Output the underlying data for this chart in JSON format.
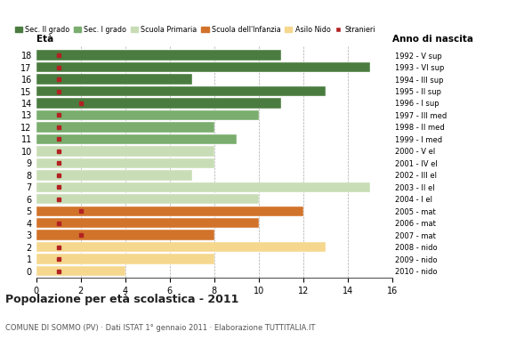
{
  "ages": [
    18,
    17,
    16,
    15,
    14,
    13,
    12,
    11,
    10,
    9,
    8,
    7,
    6,
    5,
    4,
    3,
    2,
    1,
    0
  ],
  "bar_values": [
    11,
    15,
    7,
    13,
    11,
    10,
    8,
    9,
    8,
    8,
    7,
    15,
    10,
    12,
    10,
    8,
    13,
    8,
    4
  ],
  "stranieri": [
    1,
    1,
    1,
    1,
    2,
    1,
    1,
    1,
    1,
    1,
    1,
    1,
    1,
    2,
    1,
    2,
    1,
    1,
    1
  ],
  "bar_colors": {
    "18": "#4a7c3f",
    "17": "#4a7c3f",
    "16": "#4a7c3f",
    "15": "#4a7c3f",
    "14": "#4a7c3f",
    "13": "#7aad6e",
    "12": "#7aad6e",
    "11": "#7aad6e",
    "10": "#c8ddb5",
    "9": "#c8ddb5",
    "8": "#c8ddb5",
    "7": "#c8ddb5",
    "6": "#c8ddb5",
    "5": "#d2732b",
    "4": "#d2732b",
    "3": "#d2732b",
    "2": "#f5d78e",
    "1": "#f5d78e",
    "0": "#f5d78e"
  },
  "right_labels": {
    "18": "1992 - V sup",
    "17": "1993 - VI sup",
    "16": "1994 - III sup",
    "15": "1995 - II sup",
    "14": "1996 - I sup",
    "13": "1997 - III med",
    "12": "1998 - II med",
    "11": "1999 - I med",
    "10": "2000 - V el",
    "9": "2001 - IV el",
    "8": "2002 - III el",
    "7": "2003 - II el",
    "6": "2004 - I el",
    "5": "2005 - mat",
    "4": "2006 - mat",
    "3": "2007 - mat",
    "2": "2008 - nido",
    "1": "2009 - nido",
    "0": "2010 - nido"
  },
  "legend_labels": [
    "Sec. II grado",
    "Sec. I grado",
    "Scuola Primaria",
    "Scuola dell'Infanzia",
    "Asilo Nido",
    "Stranieri"
  ],
  "legend_colors": [
    "#4a7c3f",
    "#7aad6e",
    "#c8ddb5",
    "#d2732b",
    "#f5d78e",
    "#b22222"
  ],
  "title": "Popolazione per età scolastica - 2011",
  "subtitle": "COMUNE DI SOMMO (PV) · Dati ISTAT 1° gennaio 2011 · Elaborazione TUTTITALIA.IT",
  "eta_label": "Età",
  "anno_label": "Anno di nascita",
  "xlim": [
    0,
    16
  ],
  "xticks": [
    0,
    2,
    4,
    6,
    8,
    10,
    12,
    14,
    16
  ],
  "bar_height": 0.85
}
